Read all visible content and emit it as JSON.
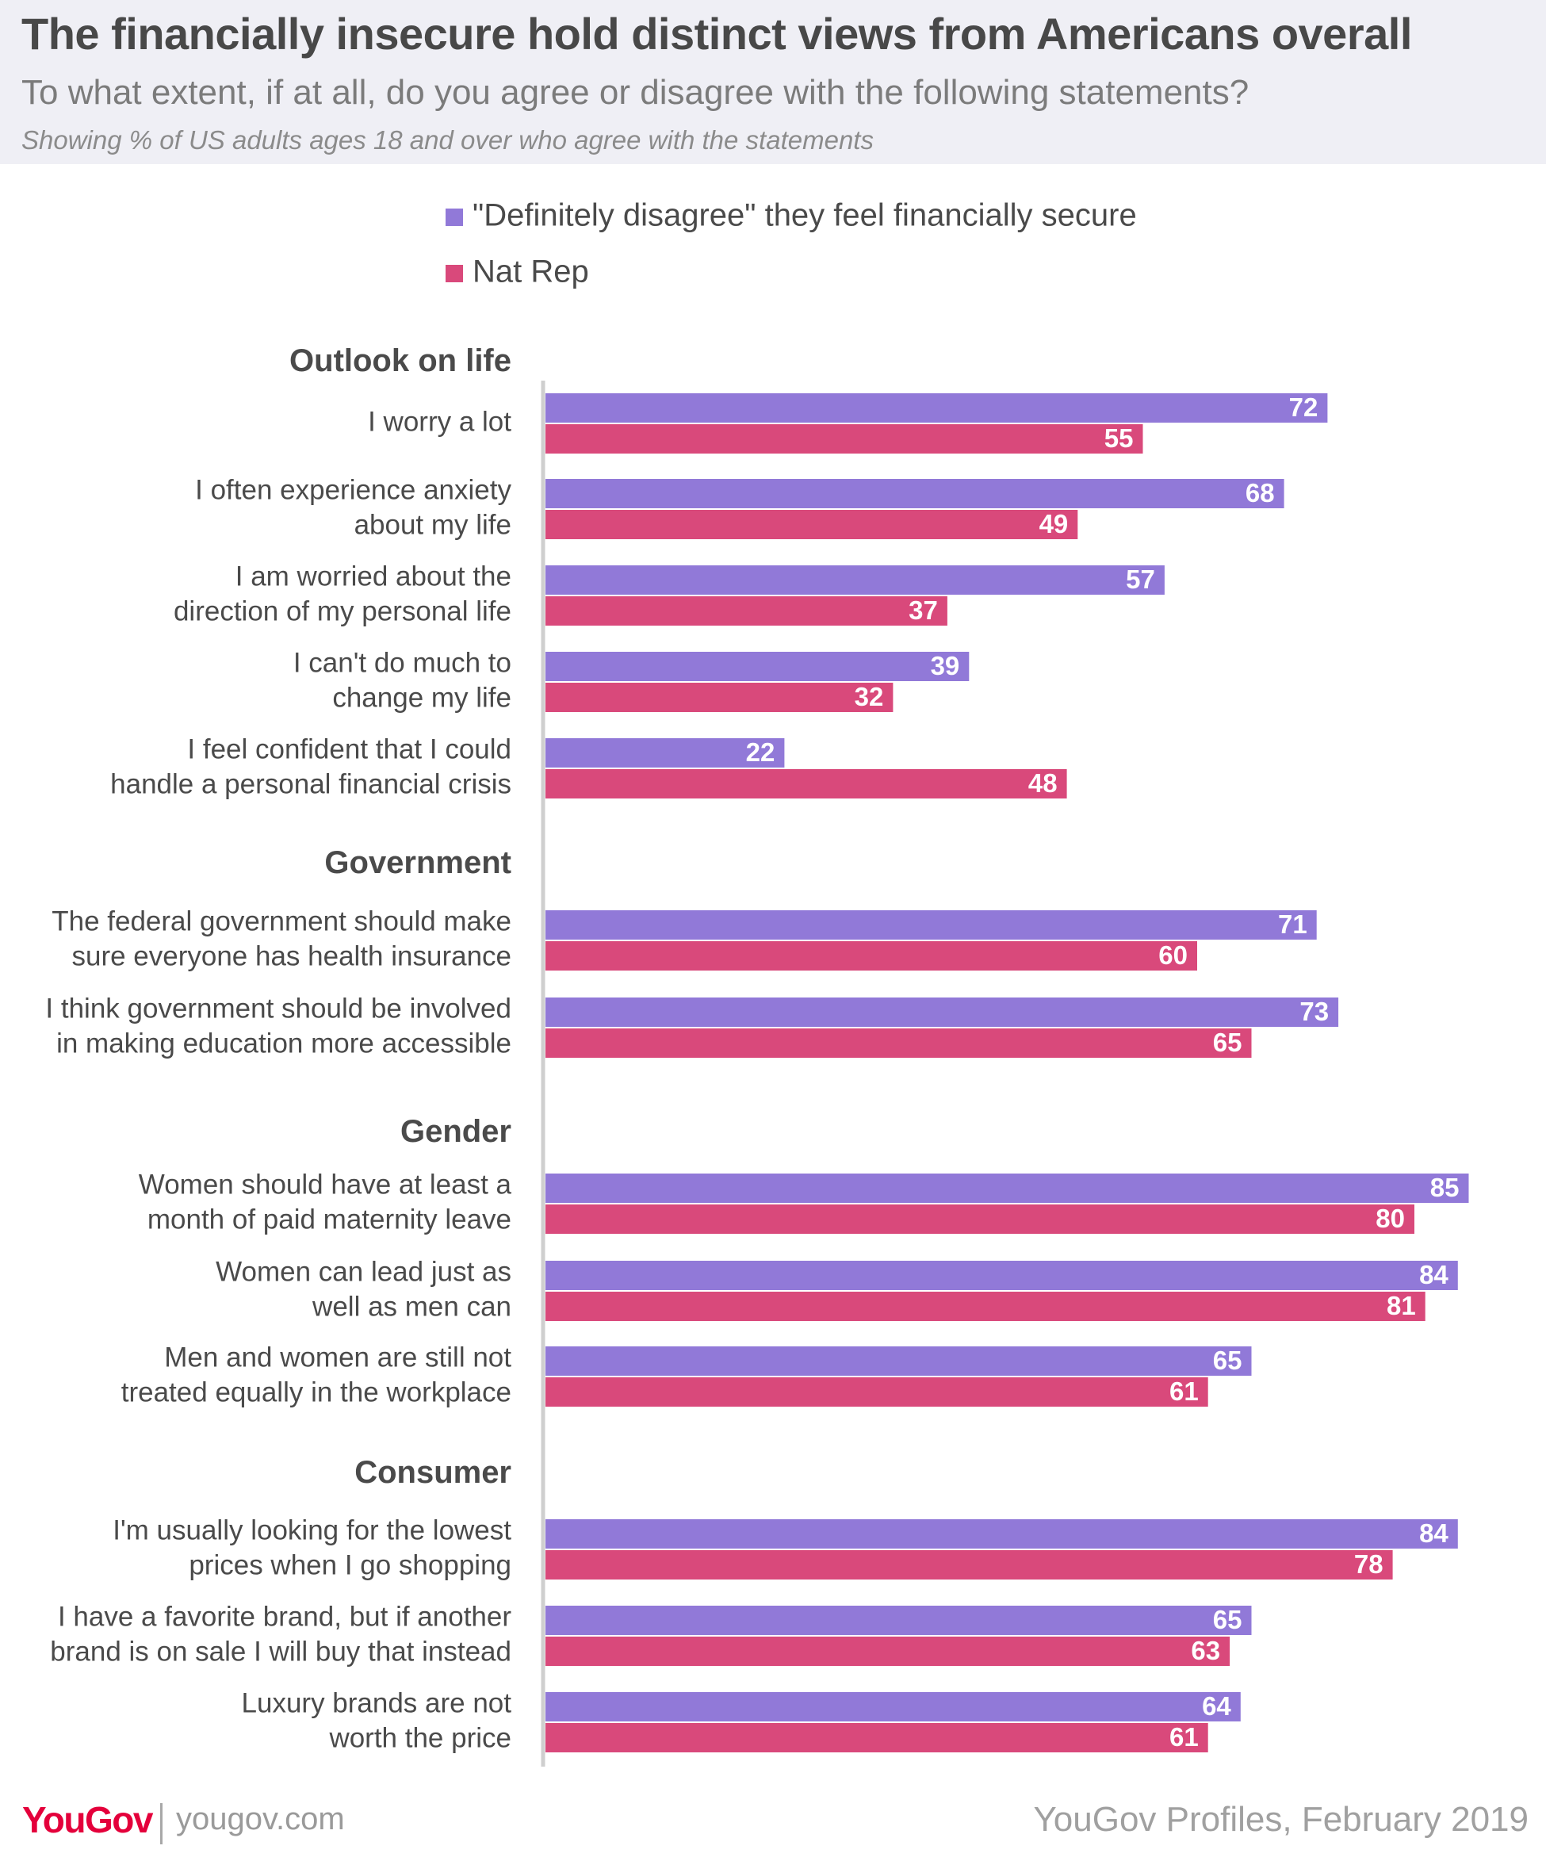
{
  "header": {
    "title": "The financially insecure hold distinct views from Americans overall",
    "subtitle": "To what extent, if at all, do you agree or disagree with the following statements?",
    "note": "Showing % of US adults ages 18 and over who agree with the statements"
  },
  "footer": {
    "logo": "YouGov",
    "url": "yougov.com",
    "source": "YouGov Profiles, February 2019"
  },
  "colors": {
    "series_1": "#9179d8",
    "series_2": "#d9497b",
    "axis": "#cfcfcf",
    "label_text": "#4a4a4a",
    "group_text": "#4a4a4a",
    "value_text": "#ffffff"
  },
  "chart_data": {
    "type": "bar",
    "orientation": "horizontal",
    "xlim": [
      0,
      100
    ],
    "grid": false,
    "legend_position": "top",
    "series_names": [
      "\"Definitely disagree\" they feel financially secure",
      "Nat Rep"
    ],
    "groups": [
      {
        "name": "Outlook on life",
        "items": [
          {
            "label": [
              "I worry a lot"
            ],
            "values": [
              72,
              55
            ]
          },
          {
            "label": [
              "I often experience anxiety",
              "about my life"
            ],
            "values": [
              68,
              49
            ]
          },
          {
            "label": [
              "I am worried about the",
              "direction of my personal life"
            ],
            "values": [
              57,
              37
            ]
          },
          {
            "label": [
              "I can't do much to",
              "change my life"
            ],
            "values": [
              39,
              32
            ]
          },
          {
            "label": [
              "I feel confident that I could",
              "handle a personal financial crisis"
            ],
            "values": [
              22,
              48
            ]
          }
        ]
      },
      {
        "name": "Government",
        "items": [
          {
            "label": [
              "The federal government should make",
              "sure everyone has health insurance"
            ],
            "values": [
              71,
              60
            ]
          },
          {
            "label": [
              "I think government should be involved",
              "in making education more accessible"
            ],
            "values": [
              73,
              65
            ]
          }
        ]
      },
      {
        "name": "Gender",
        "items": [
          {
            "label": [
              "Women should have at least a",
              "month of paid maternity leave"
            ],
            "values": [
              85,
              80
            ]
          },
          {
            "label": [
              "Women can lead just as",
              "well as men can"
            ],
            "values": [
              84,
              81
            ]
          },
          {
            "label": [
              "Men and women are still not",
              "treated equally in the workplace"
            ],
            "values": [
              65,
              61
            ]
          }
        ]
      },
      {
        "name": "Consumer",
        "items": [
          {
            "label": [
              "I'm usually looking for the lowest",
              "prices when I go shopping"
            ],
            "values": [
              84,
              78
            ]
          },
          {
            "label": [
              "I have a favorite brand, but if another",
              "brand is on sale I will buy that instead"
            ],
            "values": [
              65,
              63
            ]
          },
          {
            "label": [
              "Luxury brands are not",
              "worth the price"
            ],
            "values": [
              64,
              61
            ]
          }
        ]
      }
    ]
  }
}
